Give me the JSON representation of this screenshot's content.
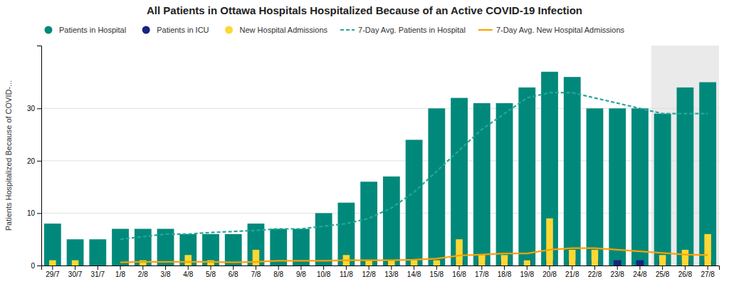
{
  "chart_data": {
    "type": "bar",
    "title": "All Patients in Ottawa Hospitals Hospitalized Because of an Active COVID-19 Infection",
    "ylabel": "Patients Hospitalized Because of COVID-...",
    "categories": [
      "29/7",
      "30/7",
      "31/7",
      "1/8",
      "2/8",
      "3/8",
      "4/8",
      "5/8",
      "6/8",
      "7/8",
      "8/8",
      "9/8",
      "10/8",
      "11/8",
      "12/8",
      "13/8",
      "14/8",
      "15/8",
      "16/8",
      "17/8",
      "18/8",
      "19/8",
      "20/8",
      "21/8",
      "22/8",
      "23/8",
      "24/8",
      "25/8",
      "26/8",
      "27/8"
    ],
    "series": [
      {
        "name": "Patients in Hospital",
        "type": "bar",
        "color": "#00897B",
        "values": [
          8,
          5,
          5,
          7,
          7,
          7,
          6,
          6,
          6,
          8,
          7,
          7,
          10,
          12,
          16,
          17,
          24,
          30,
          32,
          31,
          31,
          34,
          37,
          36,
          30,
          30,
          30,
          29,
          34,
          35
        ]
      },
      {
        "name": "Patients in ICU",
        "type": "bar",
        "color": "#1A237E",
        "values": [
          0,
          0,
          0,
          0,
          0,
          0,
          0,
          0,
          0,
          0,
          0,
          0,
          0,
          0,
          0,
          0,
          0,
          0,
          1,
          1,
          1,
          1,
          1,
          1,
          1,
          1,
          1,
          1,
          1,
          1
        ]
      },
      {
        "name": "New Hospital Admissions",
        "type": "bar",
        "color": "#FDD835",
        "values": [
          1,
          1,
          0,
          0,
          1,
          0,
          2,
          1,
          0,
          3,
          0,
          0,
          0,
          2,
          1,
          1,
          1,
          1,
          5,
          2,
          2,
          1,
          9,
          3,
          3,
          0,
          0,
          2,
          3,
          6
        ]
      },
      {
        "name": "7-Day Avg. Patients in Hospital",
        "type": "line",
        "color": "#26A69A",
        "line_style": "dashed",
        "values": [
          null,
          null,
          null,
          5.0,
          5.5,
          6.0,
          6.0,
          6.3,
          6.5,
          6.7,
          7.0,
          7.0,
          7.5,
          8.0,
          9.0,
          11.0,
          14.0,
          18.0,
          22.0,
          26.0,
          29.0,
          32.0,
          33.0,
          33.0,
          32.0,
          31.0,
          30.0,
          29.0,
          29.0,
          29.0
        ]
      },
      {
        "name": "7-Day Avg. New Hospital Admissions",
        "type": "line",
        "color": "#FFA000",
        "line_style": "solid",
        "values": [
          null,
          null,
          null,
          0.6,
          0.7,
          0.7,
          0.7,
          0.7,
          0.6,
          0.7,
          0.9,
          0.9,
          0.9,
          1.0,
          1.0,
          1.0,
          1.1,
          1.3,
          1.9,
          2.1,
          2.3,
          2.3,
          3.0,
          3.3,
          3.3,
          3.0,
          2.7,
          2.4,
          2.1,
          2.0
        ]
      }
    ],
    "ylim": [
      0,
      42
    ],
    "yticks": [
      0,
      10,
      20,
      30
    ],
    "grid": true,
    "legend": "top",
    "shaded_from": "25/8"
  }
}
